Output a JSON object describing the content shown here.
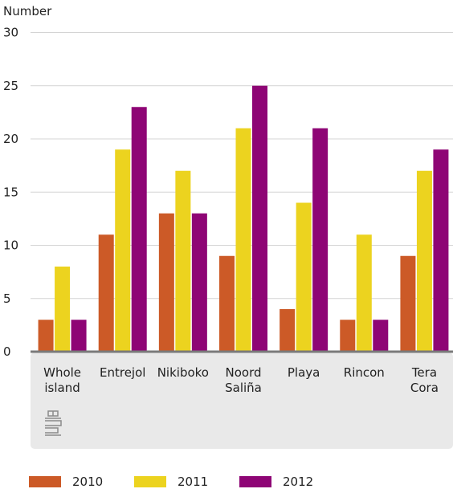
{
  "chart_data": {
    "type": "bar",
    "ylabel": "Number",
    "ylim": [
      0,
      30
    ],
    "yticks": [
      0,
      5,
      10,
      15,
      20,
      25,
      30
    ],
    "categories": [
      [
        "Whole",
        "island"
      ],
      [
        "Entrejol"
      ],
      [
        "Nikiboko"
      ],
      [
        "Noord",
        "Saliña"
      ],
      [
        "Playa"
      ],
      [
        "Rincon"
      ],
      [
        "Tera",
        "Cora"
      ]
    ],
    "series": [
      {
        "name": "2010",
        "color": "#cc5a27",
        "values": [
          3,
          11,
          13,
          9,
          4,
          3,
          9
        ]
      },
      {
        "name": "2011",
        "color": "#ecd31f",
        "values": [
          8,
          19,
          17,
          21,
          14,
          11,
          17
        ]
      },
      {
        "name": "2012",
        "color": "#8e0575",
        "values": [
          3,
          23,
          13,
          25,
          21,
          3,
          19
        ]
      }
    ],
    "grid": true,
    "legend_position": "bottom",
    "logo": "cbs"
  },
  "colors": {
    "grid": "#d4d4d4",
    "axis": "#7a7a7a",
    "panel": "#e9e9e9",
    "text": "#222222"
  },
  "icons": {
    "logo": "cbs-logo-icon"
  }
}
